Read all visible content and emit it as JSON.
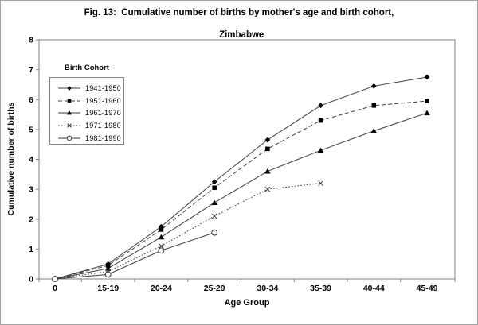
{
  "chart_data": {
    "type": "line",
    "title_line1": "Fig. 13:  Cumulative number of births by mother's age and birth cohort,",
    "title_line2": "Zimbabwe",
    "xlabel": "Age Group",
    "ylabel": "Cumulative number of births",
    "legend_title": "Birth Cohort",
    "legend_position": "upper-left-inside",
    "grid": false,
    "categories": [
      "0",
      "15-19",
      "20-24",
      "25-29",
      "30-34",
      "35-39",
      "40-44",
      "45-49"
    ],
    "ylim": [
      0,
      8
    ],
    "ytick_step": 1,
    "yticks": [
      0,
      1,
      2,
      3,
      4,
      5,
      6,
      7,
      8
    ],
    "series": [
      {
        "name": "1941-1950",
        "marker": "diamond",
        "line": "solid",
        "values": [
          0,
          0.5,
          1.75,
          3.25,
          4.65,
          5.8,
          6.45,
          6.75
        ]
      },
      {
        "name": "1951-1960",
        "marker": "square",
        "line": "dashed",
        "values": [
          0,
          0.45,
          1.65,
          3.05,
          4.35,
          5.3,
          5.8,
          5.95
        ]
      },
      {
        "name": "1961-1970",
        "marker": "triangle",
        "line": "solid",
        "values": [
          0,
          0.35,
          1.4,
          2.55,
          3.6,
          4.3,
          4.95,
          5.55
        ]
      },
      {
        "name": "1971-1980",
        "marker": "x",
        "line": "dotted",
        "values": [
          0,
          0.25,
          1.1,
          2.1,
          3.0,
          3.2,
          null,
          null
        ]
      },
      {
        "name": "1981-1990",
        "marker": "circle-open",
        "line": "solid",
        "values": [
          0,
          0.15,
          0.95,
          1.55,
          null,
          null,
          null,
          null
        ]
      }
    ],
    "colors": {
      "line": "#3c3c3c",
      "marker_fill": "#000000",
      "axis": "#7f7f7f",
      "text": "#000000"
    }
  }
}
